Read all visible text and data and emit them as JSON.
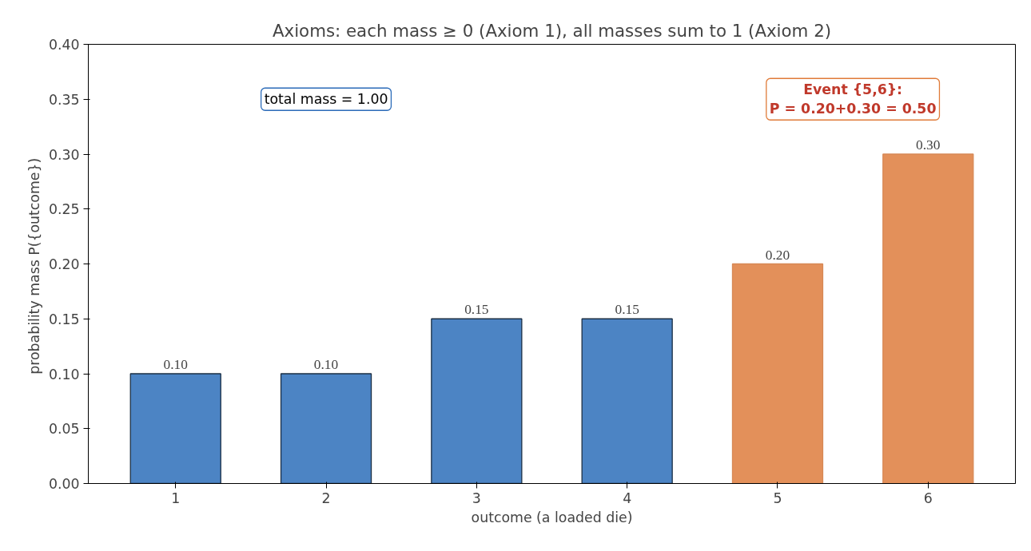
{
  "chart_data": {
    "type": "bar",
    "title": "Axioms: each mass ≥ 0 (Axiom 1), all masses sum to 1 (Axiom 2)",
    "xlabel": "outcome (a loaded die)",
    "ylabel": "probability mass  P({outcome})",
    "categories": [
      "1",
      "2",
      "3",
      "4",
      "5",
      "6"
    ],
    "values": [
      0.1,
      0.1,
      0.15,
      0.15,
      0.2,
      0.3
    ],
    "colors": [
      "#4c84c4",
      "#4c84c4",
      "#4c84c4",
      "#4c84c4",
      "#e3905a",
      "#e3905a"
    ],
    "value_labels": [
      "0.10",
      "0.10",
      "0.15",
      "0.15",
      "0.20",
      "0.30"
    ],
    "ylim": [
      0,
      0.4
    ],
    "yticks": [
      {
        "value": 0,
        "label": "0.00"
      },
      {
        "value": 0.05,
        "label": "0.05"
      },
      {
        "value": 0.1,
        "label": "0.10"
      },
      {
        "value": 0.15,
        "label": "0.15"
      },
      {
        "value": 0.2,
        "label": "0.20"
      },
      {
        "value": 0.25,
        "label": "0.25"
      },
      {
        "value": 0.3,
        "label": "0.30"
      },
      {
        "value": 0.35,
        "label": "0.35"
      },
      {
        "value": 0.4,
        "label": "0.40"
      }
    ],
    "annotations": [
      "total mass = 1.00",
      "Event {5,6}:\nP = 0.20+0.30 = 0.50"
    ],
    "grid": false
  }
}
